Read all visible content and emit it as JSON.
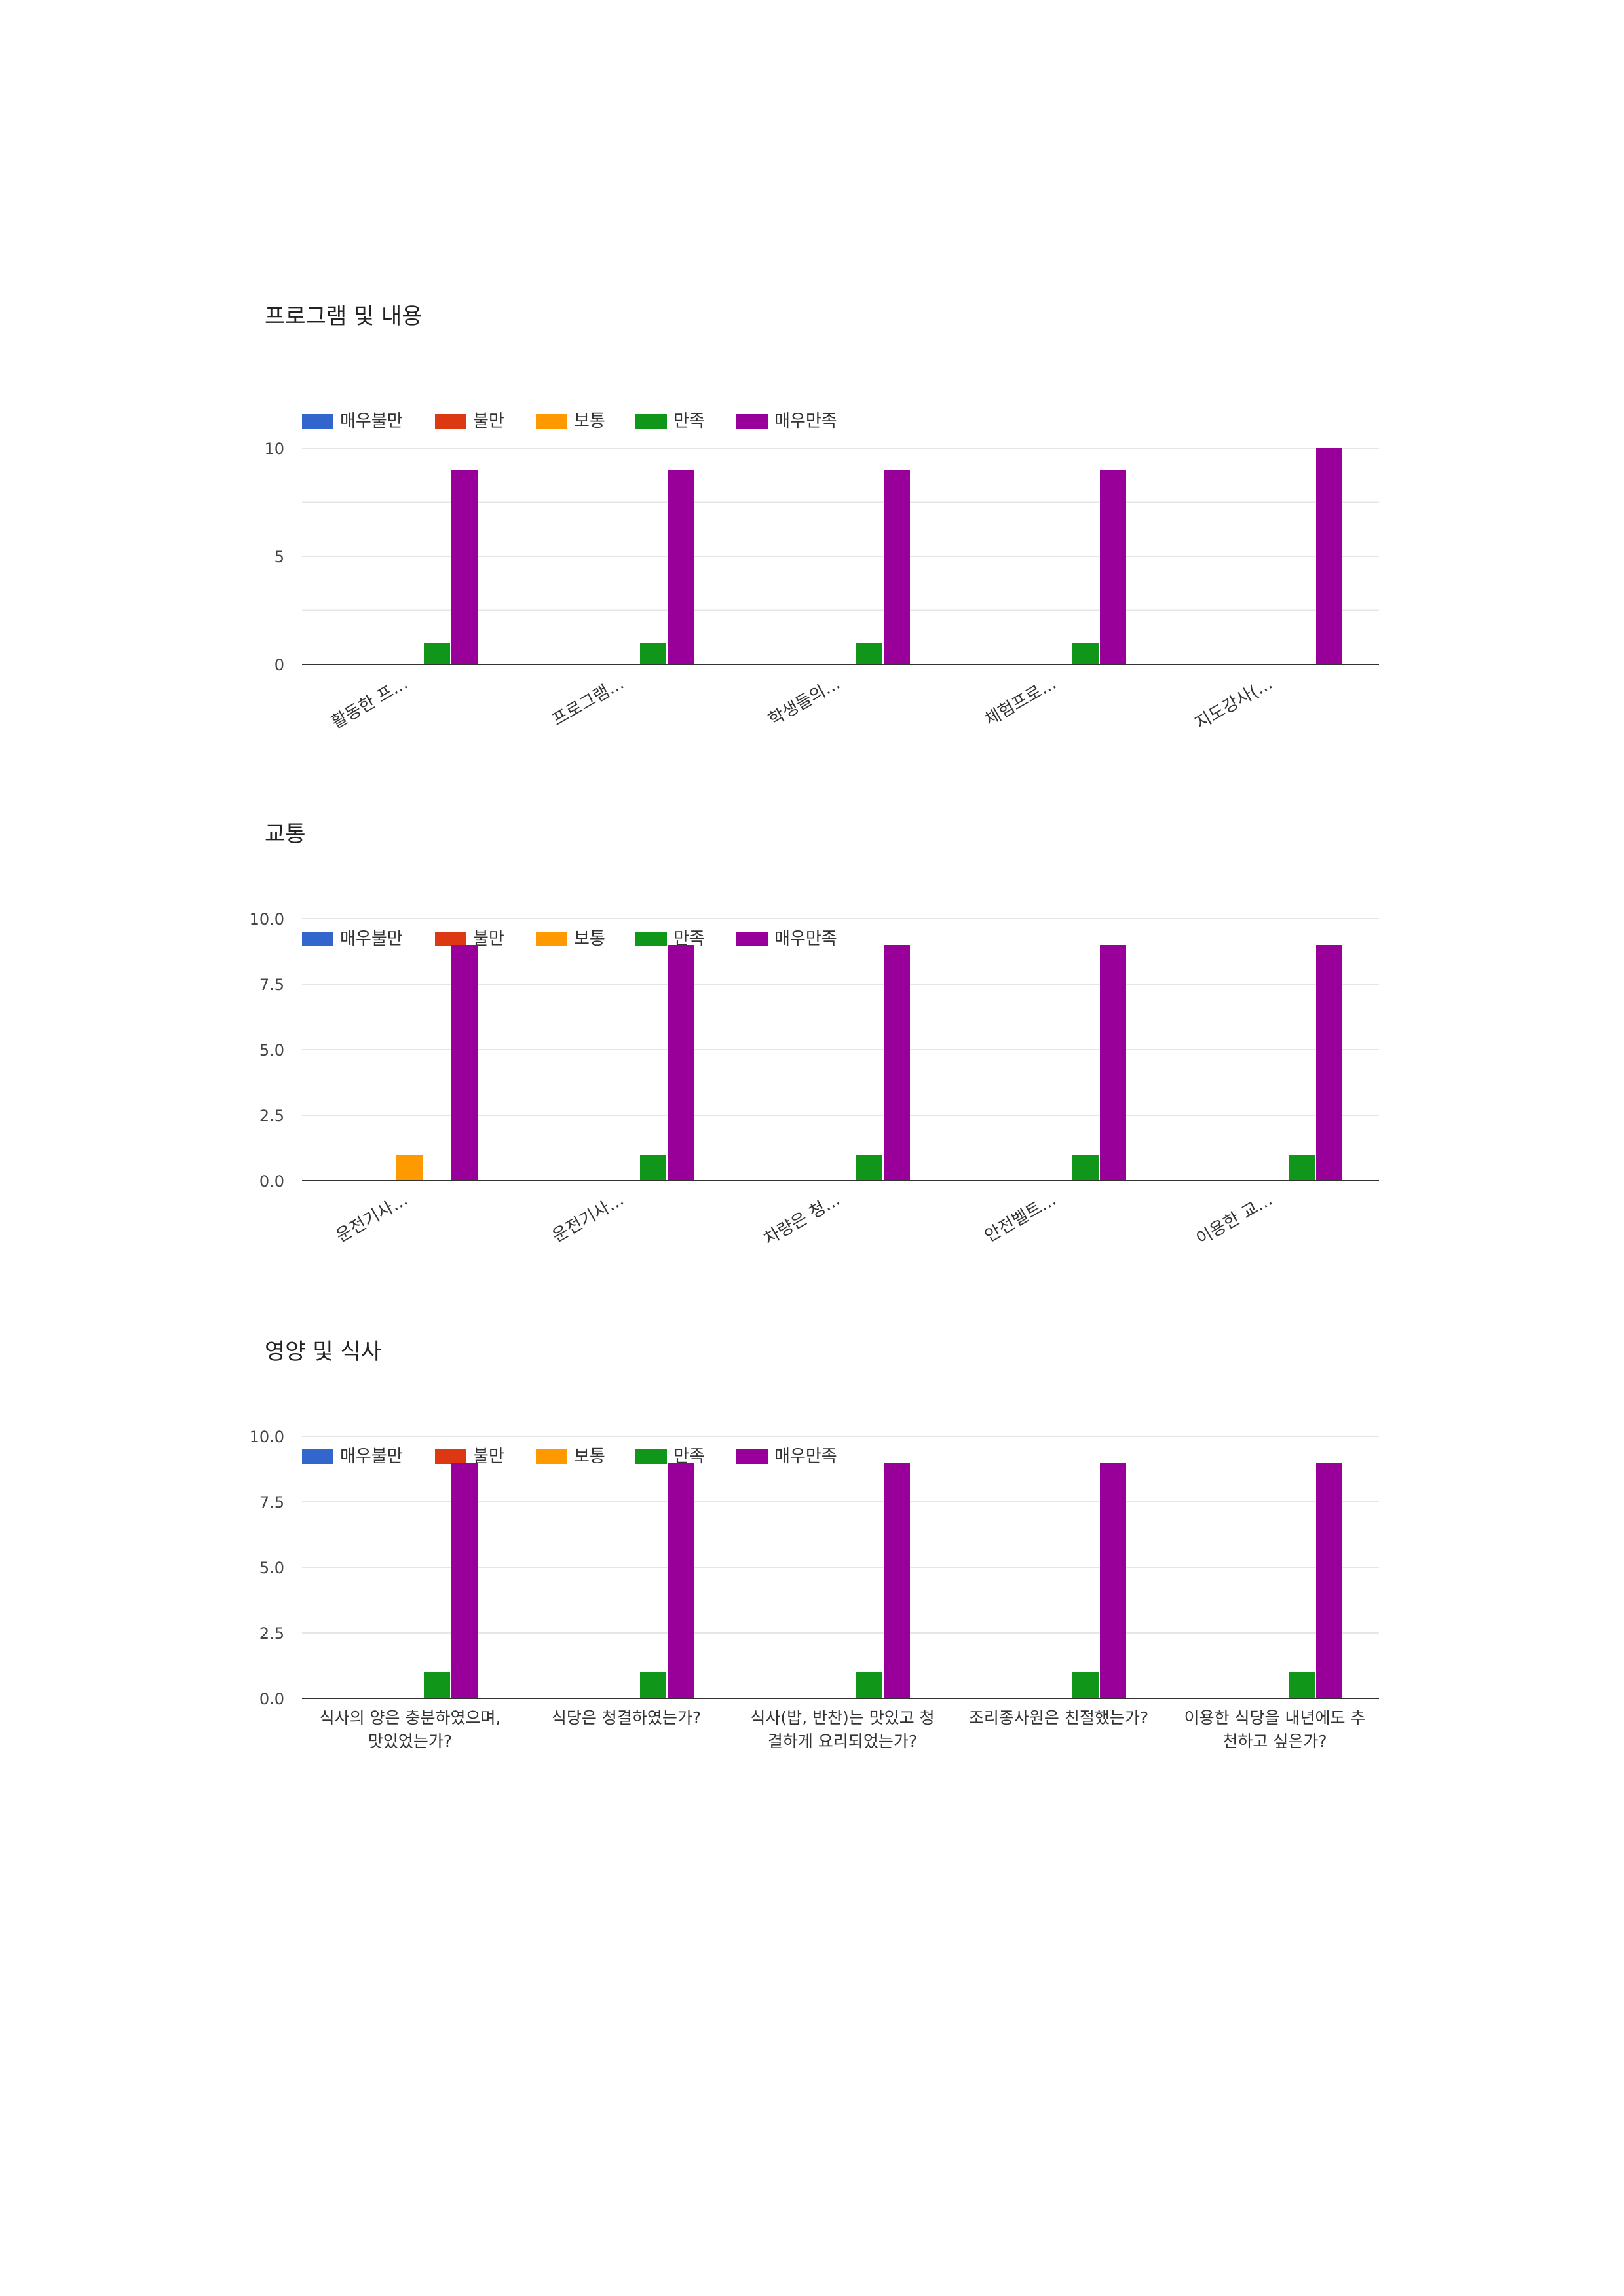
{
  "colors": {
    "매우불만": "#3366cc",
    "불만": "#dc3912",
    "보통": "#ff9900",
    "만족": "#109618",
    "매우만족": "#990099",
    "grid": "#e6e6e6",
    "baseline": "#333333",
    "tick_text": "#444444"
  },
  "chart_data": [
    {
      "type": "bar",
      "title": "프로그램 및 내용",
      "categories": [
        "활동한 프...",
        "프로그램...",
        "학생들의...",
        "체험프로...",
        "지도강사(..."
      ],
      "category_label_style": "rotated",
      "yticks": [
        "0",
        "5",
        "10"
      ],
      "ylim": [
        0,
        10
      ],
      "grid_step": 2.5,
      "legend_position": "top",
      "series": [
        {
          "name": "매우불만",
          "values": [
            0,
            0,
            0,
            0,
            0
          ]
        },
        {
          "name": "불만",
          "values": [
            0,
            0,
            0,
            0,
            0
          ]
        },
        {
          "name": "보통",
          "values": [
            0,
            0,
            0,
            0,
            0
          ]
        },
        {
          "name": "만족",
          "values": [
            1,
            1,
            1,
            1,
            0
          ]
        },
        {
          "name": "매우만족",
          "values": [
            9,
            9,
            9,
            9,
            10
          ]
        }
      ]
    },
    {
      "type": "bar",
      "title": "교통",
      "categories": [
        "운전기사...",
        "운전기사...",
        "차량은 청...",
        "안전벨트...",
        "이용한 교..."
      ],
      "category_label_style": "rotated",
      "yticks": [
        "0.0",
        "2.5",
        "5.0",
        "7.5",
        "10.0"
      ],
      "ylim": [
        0,
        10
      ],
      "grid_step": 2.5,
      "legend_position": "top",
      "series": [
        {
          "name": "매우불만",
          "values": [
            0,
            0,
            0,
            0,
            0
          ]
        },
        {
          "name": "불만",
          "values": [
            0,
            0,
            0,
            0,
            0
          ]
        },
        {
          "name": "보통",
          "values": [
            1,
            0,
            0,
            0,
            0
          ]
        },
        {
          "name": "만족",
          "values": [
            0,
            1,
            1,
            1,
            1
          ]
        },
        {
          "name": "매우만족",
          "values": [
            9,
            9,
            9,
            9,
            9
          ]
        }
      ]
    },
    {
      "type": "bar",
      "title": "영양 및 식사",
      "categories": [
        [
          "식사의 양은 충분하였으며,",
          "맛있었는가?"
        ],
        [
          "식당은 청결하였는가?"
        ],
        [
          "식사(밥, 반찬)는 맛있고 청",
          "결하게 요리되었는가?"
        ],
        [
          "조리종사원은 친절했는가?"
        ],
        [
          "이용한 식당을 내년에도 추",
          "천하고 싶은가?"
        ]
      ],
      "category_label_style": "wrapped",
      "yticks": [
        "0.0",
        "2.5",
        "5.0",
        "7.5",
        "10.0"
      ],
      "ylim": [
        0,
        10
      ],
      "grid_step": 2.5,
      "legend_position": "top",
      "series": [
        {
          "name": "매우불만",
          "values": [
            0,
            0,
            0,
            0,
            0
          ]
        },
        {
          "name": "불만",
          "values": [
            0,
            0,
            0,
            0,
            0
          ]
        },
        {
          "name": "보통",
          "values": [
            0,
            0,
            0,
            0,
            0
          ]
        },
        {
          "name": "만족",
          "values": [
            1,
            1,
            1,
            1,
            1
          ]
        },
        {
          "name": "매우만족",
          "values": [
            9,
            9,
            9,
            9,
            9
          ]
        }
      ]
    }
  ]
}
